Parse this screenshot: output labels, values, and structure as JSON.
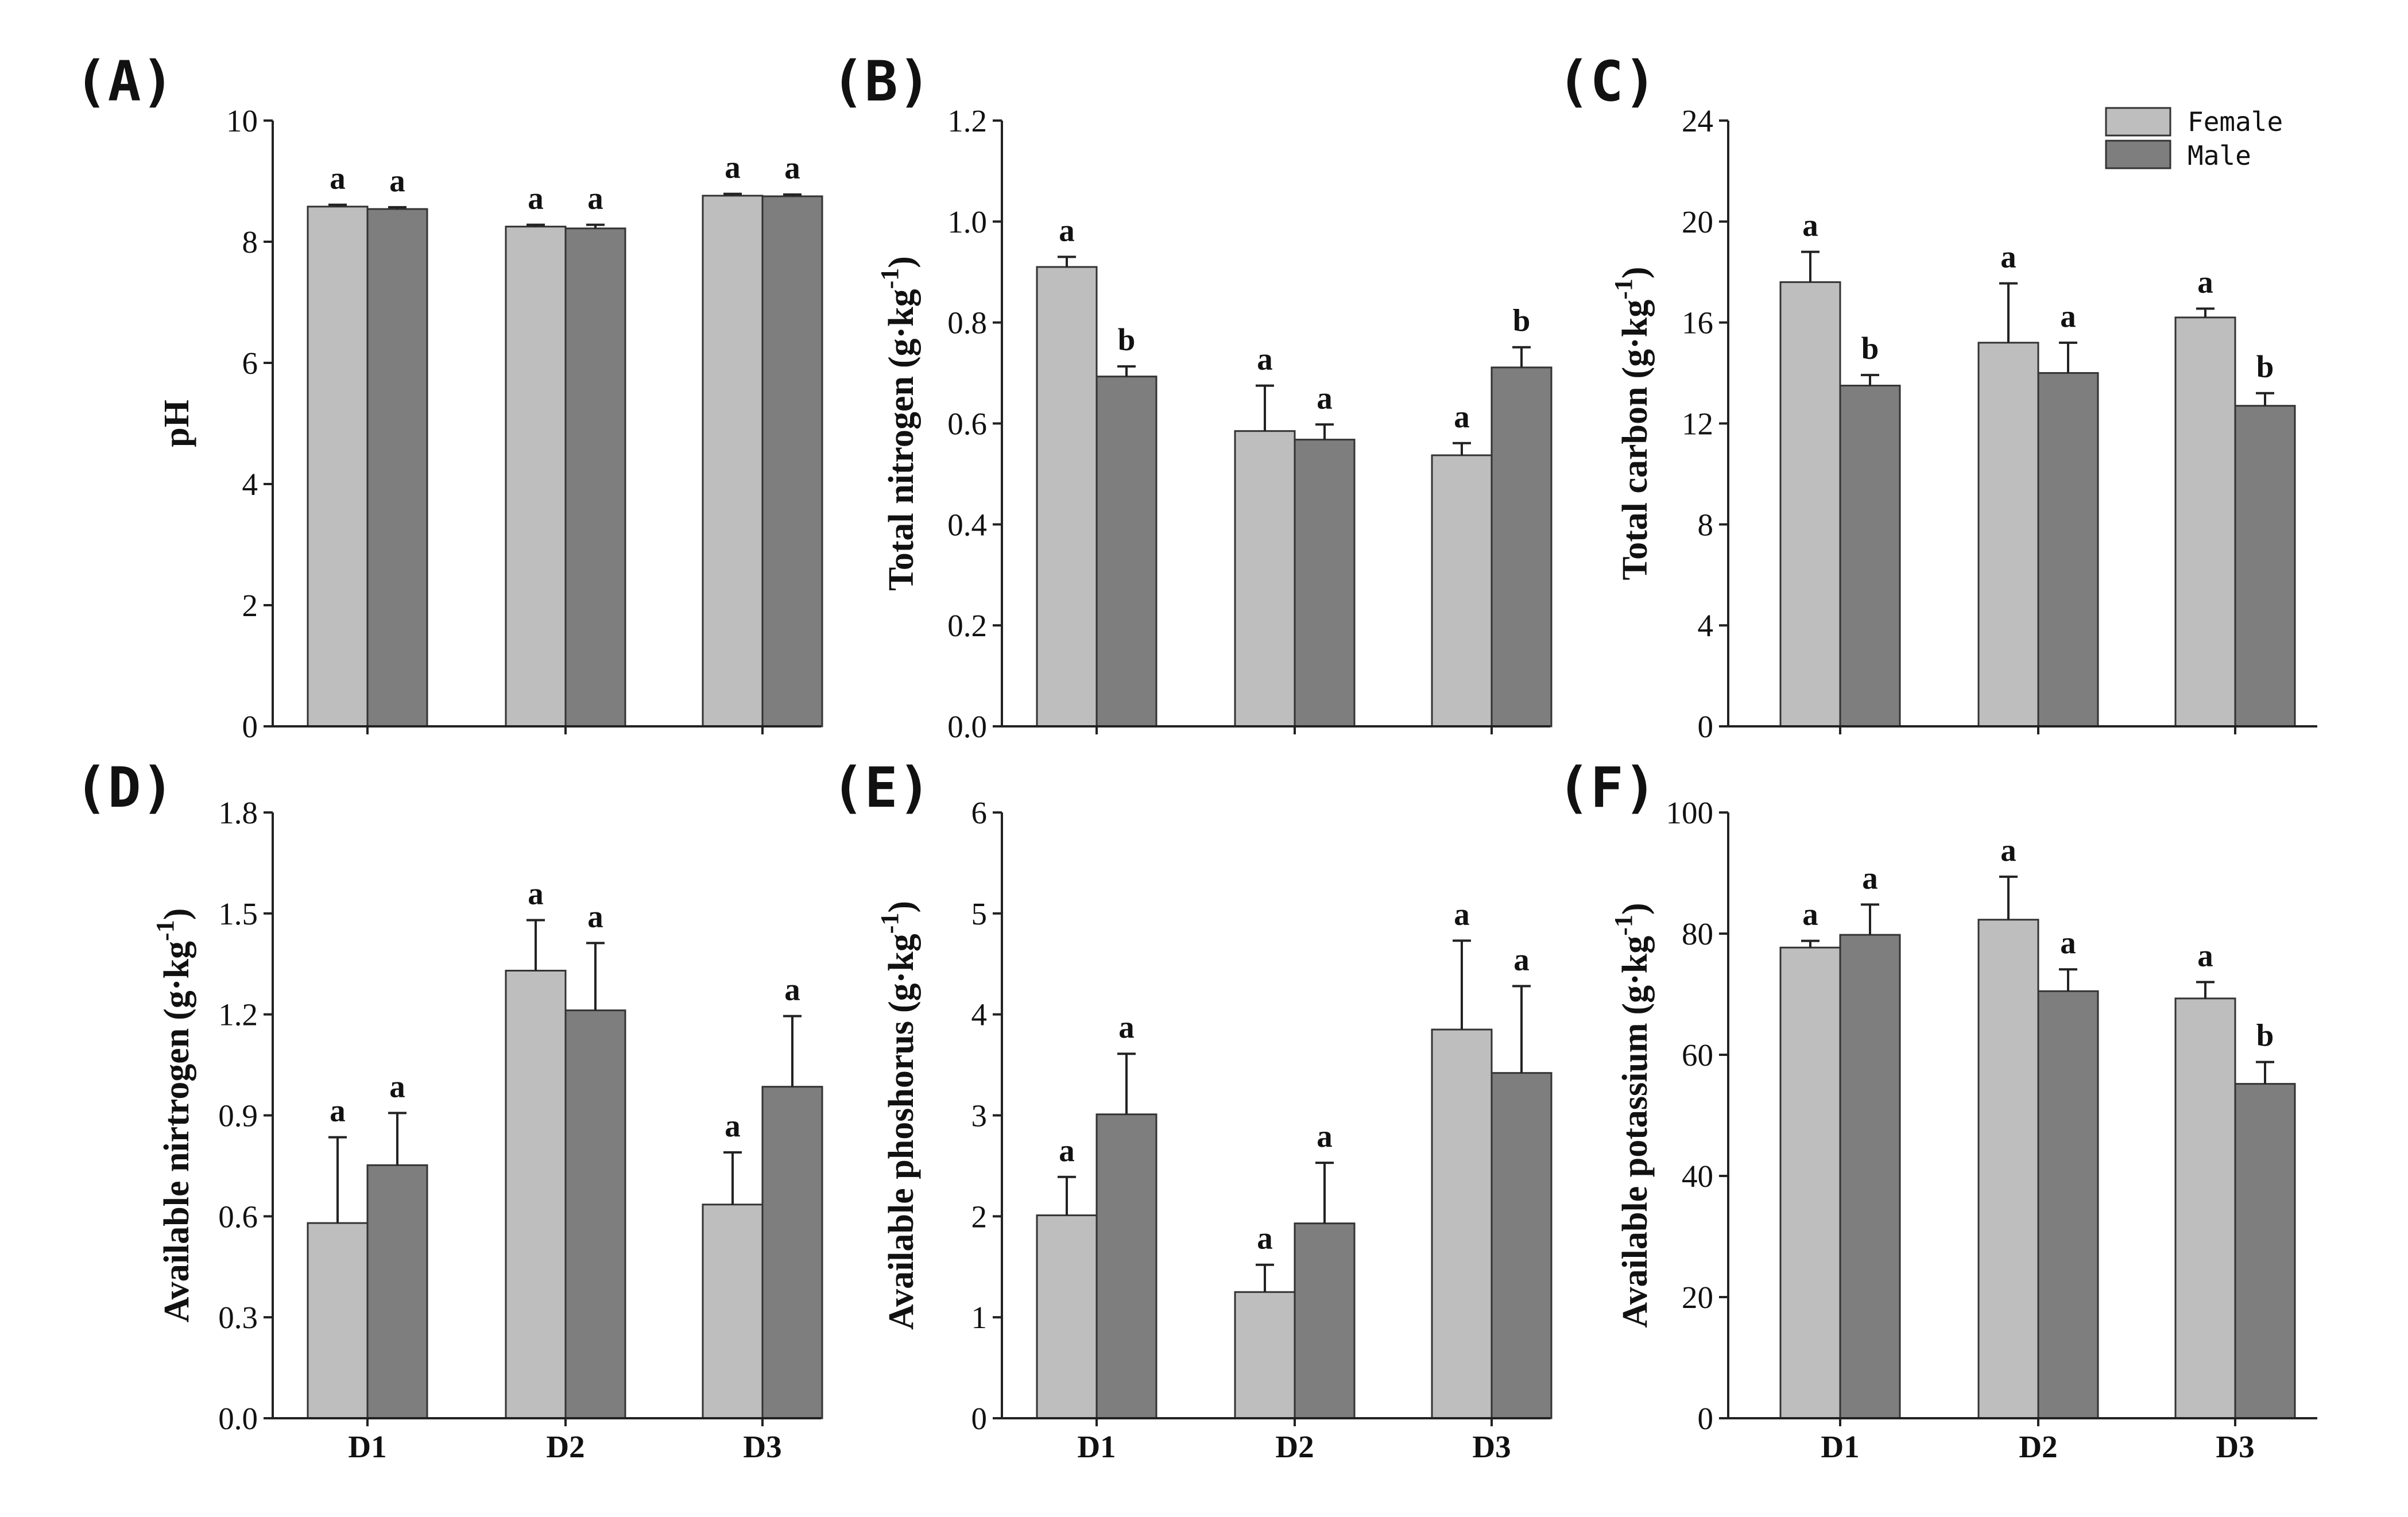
{
  "chart_data": [
    {
      "type": "bar",
      "panel_label": "(A)",
      "ylabel": "pH",
      "ylabel_unit": "",
      "ylim": [
        0,
        10
      ],
      "yticks": [
        "0",
        "2",
        "4",
        "6",
        "8",
        "10"
      ],
      "categories": [
        "D1",
        "D2",
        "D3"
      ],
      "show_categories": false,
      "series": [
        {
          "name": "Female",
          "values": [
            8.58,
            8.25,
            8.76
          ],
          "errors": [
            0.03,
            0.03,
            0.03
          ],
          "letters": [
            "a",
            "a",
            "a"
          ]
        },
        {
          "name": "Male",
          "values": [
            8.54,
            8.22,
            8.75
          ],
          "errors": [
            0.03,
            0.06,
            0.03
          ],
          "letters": [
            "a",
            "a",
            "a"
          ]
        }
      ]
    },
    {
      "type": "bar",
      "panel_label": "(B)",
      "ylabel": "Total nitrogen",
      "ylabel_unit": "(g·kg",
      "ylim": [
        0,
        1.2
      ],
      "yticks": [
        "0.0",
        "0.2",
        "0.4",
        "0.6",
        "0.8",
        "1.0",
        "1.2"
      ],
      "categories": [
        "D1",
        "D2",
        "D3"
      ],
      "show_categories": false,
      "series": [
        {
          "name": "Female",
          "values": [
            0.91,
            0.585,
            0.537
          ],
          "errors": [
            0.02,
            0.09,
            0.024
          ],
          "letters": [
            "a",
            "a",
            "a"
          ]
        },
        {
          "name": "Male",
          "values": [
            0.693,
            0.568,
            0.711
          ],
          "errors": [
            0.02,
            0.03,
            0.04
          ],
          "letters": [
            "b",
            "a",
            "b"
          ]
        }
      ]
    },
    {
      "type": "bar",
      "panel_label": "(C)",
      "ylabel": "Total carbon",
      "ylabel_unit": "(g·kg",
      "ylim": [
        0,
        24
      ],
      "yticks": [
        "0",
        "4",
        "8",
        "12",
        "16",
        "20",
        "24"
      ],
      "categories": [
        "D1",
        "D2",
        "D3"
      ],
      "show_categories": false,
      "series": [
        {
          "name": "Female",
          "values": [
            17.6,
            15.2,
            16.2
          ],
          "errors": [
            1.2,
            2.35,
            0.35
          ],
          "letters": [
            "a",
            "a",
            "a"
          ]
        },
        {
          "name": "Male",
          "values": [
            13.5,
            14.0,
            12.7
          ],
          "errors": [
            0.42,
            1.2,
            0.5
          ],
          "letters": [
            "b",
            "a",
            "b"
          ]
        }
      ]
    },
    {
      "type": "bar",
      "panel_label": "(D)",
      "ylabel": "Available nirtrogen",
      "ylabel_unit": "(g·kg",
      "ylim": [
        0,
        1.8
      ],
      "yticks": [
        "0.0",
        "0.3",
        "0.6",
        "0.9",
        "1.2",
        "1.5",
        "1.8"
      ],
      "categories": [
        "D1",
        "D2",
        "D3"
      ],
      "show_categories": true,
      "series": [
        {
          "name": "Female",
          "values": [
            0.58,
            1.33,
            0.635
          ],
          "errors": [
            0.255,
            0.15,
            0.155
          ],
          "letters": [
            "a",
            "a",
            "a"
          ]
        },
        {
          "name": "Male",
          "values": [
            0.752,
            1.212,
            0.985
          ],
          "errors": [
            0.155,
            0.2,
            0.21
          ],
          "letters": [
            "a",
            "a",
            "a"
          ]
        }
      ]
    },
    {
      "type": "bar",
      "panel_label": "(E)",
      "ylabel": "Available phoshorus",
      "ylabel_unit": "(g·kg",
      "ylim": [
        0,
        6
      ],
      "yticks": [
        "0",
        "1",
        "2",
        "3",
        "4",
        "5",
        "6"
      ],
      "categories": [
        "D1",
        "D2",
        "D3"
      ],
      "show_categories": true,
      "series": [
        {
          "name": "Female",
          "values": [
            2.01,
            1.25,
            3.85
          ],
          "errors": [
            0.38,
            0.27,
            0.88
          ],
          "letters": [
            "a",
            "a",
            "a"
          ]
        },
        {
          "name": "Male",
          "values": [
            3.01,
            1.93,
            3.42
          ],
          "errors": [
            0.6,
            0.6,
            0.86
          ],
          "letters": [
            "a",
            "a",
            "a"
          ]
        }
      ]
    },
    {
      "type": "bar",
      "panel_label": "(F)",
      "ylabel": "Available potassium",
      "ylabel_unit": "(g·kg",
      "ylim": [
        0,
        100
      ],
      "yticks": [
        "0",
        "20",
        "40",
        "60",
        "80",
        "100"
      ],
      "categories": [
        "D1",
        "D2",
        "D3"
      ],
      "show_categories": true,
      "series": [
        {
          "name": "Female",
          "values": [
            77.7,
            82.3,
            69.3
          ],
          "errors": [
            1.1,
            7.1,
            2.7
          ],
          "letters": [
            "a",
            "a",
            "a"
          ]
        },
        {
          "name": "Male",
          "values": [
            79.8,
            70.5,
            55.2
          ],
          "errors": [
            5.0,
            3.6,
            3.6
          ],
          "letters": [
            "a",
            "a",
            "b"
          ]
        }
      ]
    }
  ],
  "legend": {
    "entries": [
      {
        "label": "Female",
        "color": "#bebebe"
      },
      {
        "label": "Male",
        "color": "#7e7e7e"
      }
    ]
  },
  "unit_superscript": "-1",
  "unit_close": ")",
  "colors": {
    "female": "#bebebe",
    "male": "#7e7e7e",
    "axis": "#222222",
    "error_bar": "#222222"
  }
}
